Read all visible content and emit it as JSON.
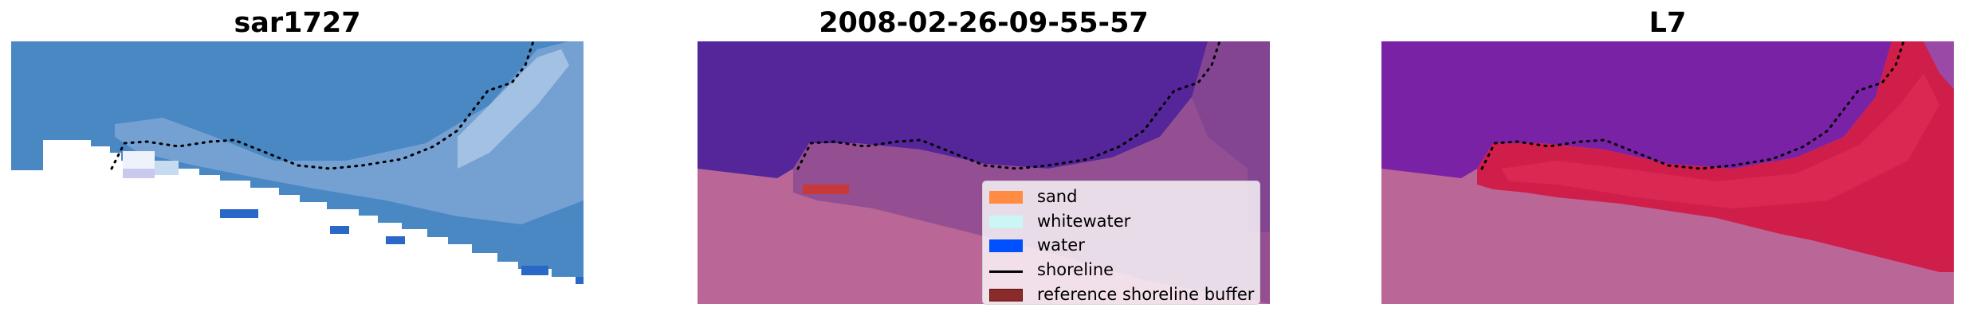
{
  "panels": [
    {
      "title": "sar1727"
    },
    {
      "title": "2008-02-26-09-55-57"
    },
    {
      "title": "L7"
    }
  ],
  "legend": {
    "items": [
      {
        "label": "sand",
        "color": "#ff8c42"
      },
      {
        "label": "whitewater",
        "color": "#ccf5f5"
      },
      {
        "label": "water",
        "color": "#0050ff"
      },
      {
        "label": "shoreline",
        "color": "#000000"
      },
      {
        "label": "reference shoreline buffer",
        "color": "#8b2a2a"
      }
    ]
  },
  "colors": {
    "rgb_water": "#4a88c4",
    "class_water": "#55259a",
    "nodata": "#ba6797",
    "ndwi_water": "#7a22a6",
    "ndwi_land": "#d01e4a"
  }
}
